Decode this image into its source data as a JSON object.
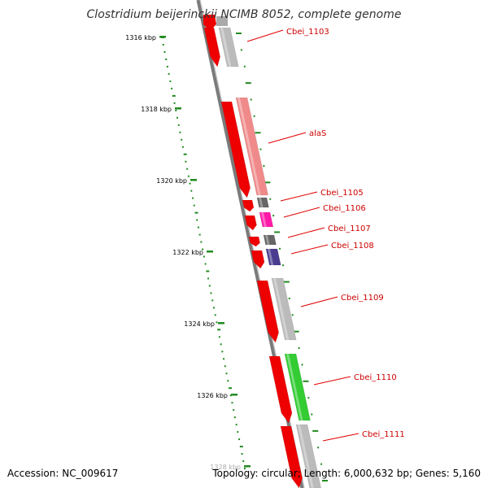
{
  "header": {
    "title": "Clostridium beijerinckii NCIMB 8052, complete genome"
  },
  "footer": {
    "accession": "Accession: NC_009617",
    "topology": "Topology: circular; Length: 6,000,632 bp; Genes: 5,160"
  },
  "scale": {
    "ticks": [
      {
        "label": "1316 kbp"
      },
      {
        "label": "1318 kbp"
      },
      {
        "label": "1320 kbp"
      },
      {
        "label": "1322 kbp"
      },
      {
        "label": "1324 kbp"
      },
      {
        "label": "1326 kbp"
      },
      {
        "label": "1328 kbp"
      }
    ]
  },
  "genes": [
    {
      "label": "Cbei_1103",
      "color": "#bbbbbb"
    },
    {
      "label": "alaS",
      "color": "#f08a8a"
    },
    {
      "label": "Cbei_1105",
      "color": "#666666"
    },
    {
      "label": "Cbei_1106",
      "color": "#ff1aa8"
    },
    {
      "label": "Cbei_1107",
      "color": "#666666"
    },
    {
      "label": "Cbei_1108",
      "color": "#4a3d8f"
    },
    {
      "label": "Cbei_1109",
      "color": "#bbbbbb"
    },
    {
      "label": "Cbei_1110",
      "color": "#33cc33"
    },
    {
      "label": "Cbei_1111",
      "color": "#bbbbbb"
    }
  ],
  "colors": {
    "cds_forward": "#ee0000",
    "backbone": "#888888",
    "gc_skew": "#228b22",
    "label": "#cc0000"
  }
}
